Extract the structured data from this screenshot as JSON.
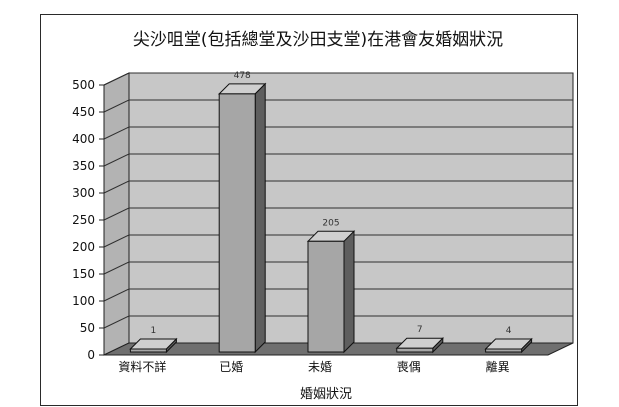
{
  "chart_data": {
    "type": "bar",
    "title": "尖沙咀堂(包括總堂及沙田支堂)在港會友婚姻狀況",
    "xlabel": "婚姻狀況",
    "ylabel": "",
    "categories": [
      "資料不詳",
      "已婚",
      "未婚",
      "喪偶",
      "離異"
    ],
    "values": [
      1,
      478,
      205,
      7,
      4
    ],
    "ylim": [
      0,
      500
    ],
    "yticks": [
      0,
      50,
      100,
      150,
      200,
      250,
      300,
      350,
      400,
      450,
      500
    ],
    "grid": true,
    "legend": "none",
    "three_d": true,
    "colors": {
      "bar_front": "#a6a6a6",
      "bar_side": "#5e5e5e",
      "bar_top": "#cfcfcf",
      "wall": "#c7c7c7",
      "side_wall": "#b3b3b3",
      "floor": "#6f6f6f",
      "grid": "#2f2f2f"
    }
  }
}
